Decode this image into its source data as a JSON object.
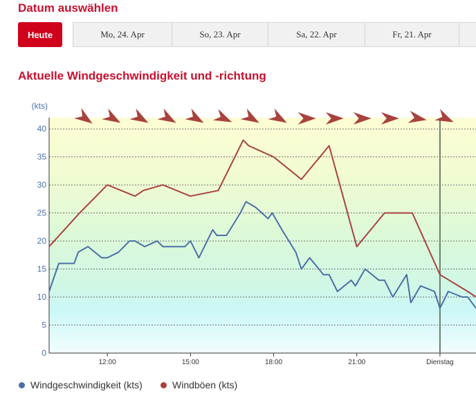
{
  "header": {
    "title": "Datum auswählen"
  },
  "date_nav": {
    "today_label": "Heute",
    "tabs": [
      "Mo, 24. Apr",
      "So, 23. Apr",
      "Sa, 22. Apr",
      "Fr, 21. Apr",
      ""
    ]
  },
  "section": {
    "title": "Aktuelle Windgeschwindigkeit und -richtung"
  },
  "colors": {
    "accent": "#d0021b",
    "wind": "#4a6fa8",
    "gust": "#a8423d",
    "direction_arrow": "#a8423d"
  },
  "chart_data": {
    "type": "line",
    "ylabel": "(kts)",
    "ylim": [
      0,
      42
    ],
    "yticks": [
      0,
      5,
      10,
      15,
      20,
      25,
      30,
      35,
      40
    ],
    "x_hours_range": [
      9.9,
      25.3
    ],
    "x_ticks": [
      {
        "hour": 12,
        "label": "12:00"
      },
      {
        "hour": 15,
        "label": "15:00"
      },
      {
        "hour": 18,
        "label": "18:00"
      },
      {
        "hour": 21,
        "label": "21:00"
      },
      {
        "hour": 24,
        "label": "Dienstag"
      }
    ],
    "current_hour": 24.0,
    "grid": true,
    "legend": "bottom-left",
    "series": [
      {
        "name": "Windgeschwindigkeit (kts)",
        "color": "#4a6fa8",
        "points": [
          [
            9.9,
            11
          ],
          [
            10.25,
            16
          ],
          [
            10.8,
            16
          ],
          [
            10.95,
            18
          ],
          [
            11.3,
            19
          ],
          [
            11.8,
            17
          ],
          [
            12.0,
            17
          ],
          [
            12.4,
            18
          ],
          [
            12.8,
            20
          ],
          [
            13.0,
            20
          ],
          [
            13.35,
            19
          ],
          [
            13.8,
            20
          ],
          [
            14.0,
            19
          ],
          [
            14.8,
            19
          ],
          [
            15.0,
            20
          ],
          [
            15.3,
            17
          ],
          [
            15.8,
            22
          ],
          [
            15.95,
            21
          ],
          [
            16.3,
            21
          ],
          [
            16.8,
            25
          ],
          [
            17.0,
            27
          ],
          [
            17.35,
            26
          ],
          [
            17.8,
            24
          ],
          [
            17.95,
            25
          ],
          [
            18.3,
            22
          ],
          [
            18.8,
            18
          ],
          [
            19.0,
            15
          ],
          [
            19.3,
            17
          ],
          [
            19.8,
            14
          ],
          [
            20.0,
            14
          ],
          [
            20.3,
            11
          ],
          [
            20.8,
            13
          ],
          [
            20.95,
            12
          ],
          [
            21.3,
            15
          ],
          [
            21.8,
            13
          ],
          [
            22.0,
            13
          ],
          [
            22.3,
            10
          ],
          [
            22.8,
            14
          ],
          [
            22.95,
            9
          ],
          [
            23.3,
            12
          ],
          [
            23.8,
            11
          ],
          [
            24.0,
            8
          ],
          [
            24.3,
            11
          ],
          [
            24.8,
            10
          ],
          [
            25.0,
            10
          ],
          [
            25.3,
            8
          ]
        ]
      },
      {
        "name": "Windböen (kts)",
        "color": "#a8423d",
        "points": [
          [
            9.9,
            19
          ],
          [
            11.0,
            25
          ],
          [
            12.0,
            30
          ],
          [
            13.0,
            28
          ],
          [
            13.3,
            29
          ],
          [
            14.0,
            30
          ],
          [
            15.0,
            28
          ],
          [
            16.0,
            29
          ],
          [
            16.9,
            38
          ],
          [
            17.1,
            37
          ],
          [
            18.0,
            35
          ],
          [
            19.0,
            31
          ],
          [
            20.0,
            37
          ],
          [
            21.0,
            19
          ],
          [
            22.0,
            25
          ],
          [
            23.0,
            25
          ],
          [
            24.0,
            14
          ],
          [
            25.0,
            11
          ],
          [
            25.3,
            10
          ]
        ]
      }
    ],
    "direction_arrows": [
      {
        "hour": 11.2,
        "rotation": 35
      },
      {
        "hour": 12.2,
        "rotation": 30
      },
      {
        "hour": 13.2,
        "rotation": 30
      },
      {
        "hour": 14.2,
        "rotation": 30
      },
      {
        "hour": 15.2,
        "rotation": 30
      },
      {
        "hour": 16.2,
        "rotation": 25
      },
      {
        "hour": 17.2,
        "rotation": 30
      },
      {
        "hour": 18.2,
        "rotation": 30
      },
      {
        "hour": 19.2,
        "rotation": 0
      },
      {
        "hour": 20.2,
        "rotation": 0
      },
      {
        "hour": 21.2,
        "rotation": 0
      },
      {
        "hour": 22.2,
        "rotation": 0
      },
      {
        "hour": 23.2,
        "rotation": 10
      },
      {
        "hour": 24.2,
        "rotation": 25
      }
    ]
  }
}
